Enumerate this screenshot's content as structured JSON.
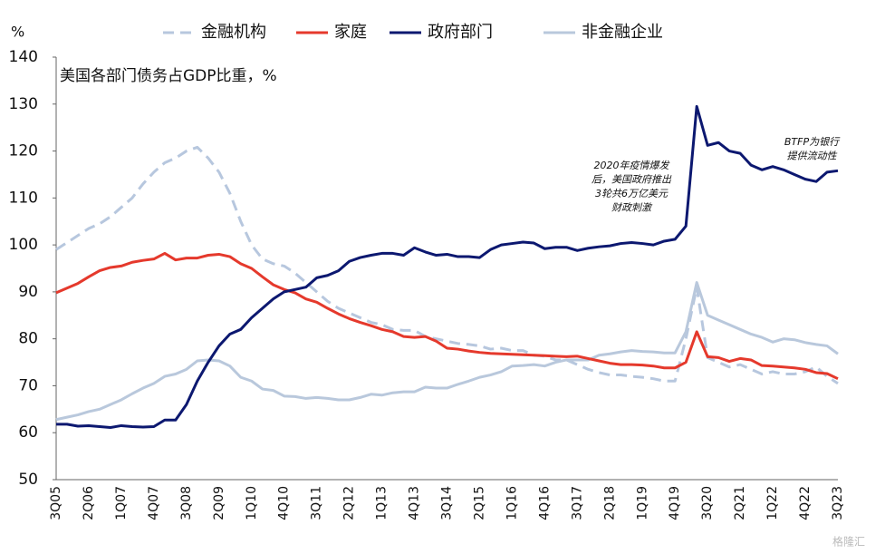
{
  "chart_data": {
    "type": "line",
    "title": "美国各部门债务占GDP比重，%",
    "y_axis_label": "%",
    "annotations": [
      [
        "2020年疫情爆发",
        "后，美国政府推出",
        "3轮共6万亿美元",
        "财政刺激"
      ],
      [
        "BTFP为银行",
        "提供流动性"
      ]
    ],
    "watermark": "格隆汇",
    "categories": [
      "3Q05",
      null,
      null,
      "2Q06",
      null,
      null,
      "1Q07",
      null,
      null,
      "4Q07",
      null,
      null,
      "3Q08",
      null,
      null,
      "2Q09",
      null,
      null,
      "1Q10",
      null,
      null,
      "4Q10",
      null,
      null,
      "3Q11",
      null,
      null,
      "2Q12",
      null,
      null,
      "1Q13",
      null,
      null,
      "4Q13",
      null,
      null,
      "3Q14",
      null,
      null,
      "2Q15",
      null,
      null,
      "1Q16",
      null,
      null,
      "4Q16",
      null,
      null,
      "3Q17",
      null,
      null,
      "2Q18",
      null,
      null,
      "1Q19",
      null,
      null,
      "4Q19",
      null,
      null,
      "3Q20",
      null,
      null,
      "2Q21",
      null,
      null,
      "1Q22",
      null,
      null,
      "4Q22",
      null,
      null,
      "3Q23"
    ],
    "series": [
      {
        "name": "金融机构",
        "color": "#b7c7de",
        "dashed": true,
        "values": [
          99,
          100.5,
          102,
          103.5,
          104.5,
          106,
          108,
          110,
          113,
          115.5,
          117.5,
          118.5,
          120,
          120.8,
          118.5,
          115.5,
          111,
          105,
          100,
          97,
          96,
          95.5,
          94,
          92,
          90,
          88,
          86.5,
          85.5,
          84.5,
          83.5,
          83,
          82,
          81.8,
          81.8,
          80.5,
          80,
          79.5,
          79,
          78.8,
          78.5,
          77.8,
          78,
          77.5,
          77.5,
          76.5,
          76.3,
          75.5,
          75.5,
          74.5,
          73.5,
          72.8,
          72.3,
          72.3,
          72,
          71.8,
          71.5,
          71,
          71,
          80,
          91,
          76,
          75,
          74,
          74.5,
          73.5,
          72.5,
          73,
          72.5,
          72.5,
          73,
          74,
          72,
          70.5
        ]
      },
      {
        "name": "家庭",
        "color": "#e5392c",
        "dashed": false,
        "values": [
          89.8,
          90.8,
          91.8,
          93.2,
          94.5,
          95.2,
          95.5,
          96.3,
          96.7,
          97,
          98.2,
          96.8,
          97.2,
          97.2,
          97.8,
          98,
          97.5,
          96,
          95,
          93.2,
          91.5,
          90.5,
          89.8,
          88.5,
          87.8,
          86.5,
          85.3,
          84.3,
          83.5,
          82.8,
          82,
          81.5,
          80.5,
          80.3,
          80.5,
          79.5,
          78,
          77.8,
          77.4,
          77.1,
          76.9,
          76.8,
          76.7,
          76.6,
          76.5,
          76.4,
          76.3,
          76.2,
          76.3,
          75.8,
          75.3,
          74.8,
          74.5,
          74.5,
          74.4,
          74.2,
          73.8,
          73.8,
          75,
          81.5,
          76.2,
          76,
          75.2,
          75.8,
          75.5,
          74.3,
          74.2,
          74,
          73.8,
          73.5,
          72.8,
          72.6,
          71.5
        ]
      },
      {
        "name": "政府部门",
        "color": "#0c1870",
        "dashed": false,
        "values": [
          61.8,
          61.8,
          61.4,
          61.5,
          61.3,
          61.1,
          61.5,
          61.3,
          61.2,
          61.3,
          62.7,
          62.7,
          66,
          71,
          75,
          78.5,
          81,
          82,
          84.5,
          86.5,
          88.5,
          90,
          90.5,
          91,
          93,
          93.5,
          94.5,
          96.5,
          97.3,
          97.8,
          98.2,
          98.2,
          97.8,
          99.4,
          98.5,
          97.8,
          98,
          97.5,
          97.5,
          97.3,
          99,
          100,
          100.3,
          100.6,
          100.4,
          99.2,
          99.5,
          99.5,
          98.8,
          99.3,
          99.6,
          99.8,
          100.3,
          100.5,
          100.3,
          100,
          100.8,
          101.2,
          104,
          129.5,
          121.2,
          121.8,
          120,
          119.5,
          117,
          116,
          116.7,
          116,
          115,
          114,
          113.5,
          115.5,
          115.8
        ]
      },
      {
        "name": "非金融企业",
        "color": "#b9c8dc",
        "dashed": false,
        "values": [
          62.8,
          63.3,
          63.8,
          64.5,
          65,
          66,
          67,
          68.3,
          69.5,
          70.5,
          72,
          72.5,
          73.5,
          75.3,
          75.5,
          75.3,
          74.2,
          71.8,
          71,
          69.3,
          69,
          67.8,
          67.7,
          67.3,
          67.5,
          67.3,
          67,
          67,
          67.5,
          68.2,
          68,
          68.5,
          68.7,
          68.7,
          69.7,
          69.5,
          69.5,
          70.3,
          71,
          71.8,
          72.3,
          73,
          74.2,
          74.3,
          74.5,
          74.2,
          75,
          75.5,
          75.5,
          75.5,
          76.5,
          76.8,
          77.2,
          77.5,
          77.3,
          77.2,
          77,
          77,
          81.5,
          92,
          85,
          84,
          83,
          82,
          81,
          80.3,
          79.3,
          80,
          79.8,
          79.2,
          78.8,
          78.5,
          76.8
        ]
      }
    ],
    "ylim": [
      50,
      140
    ],
    "yticks": [
      50,
      60,
      70,
      80,
      90,
      100,
      110,
      120,
      130,
      140
    ],
    "grid": false
  }
}
